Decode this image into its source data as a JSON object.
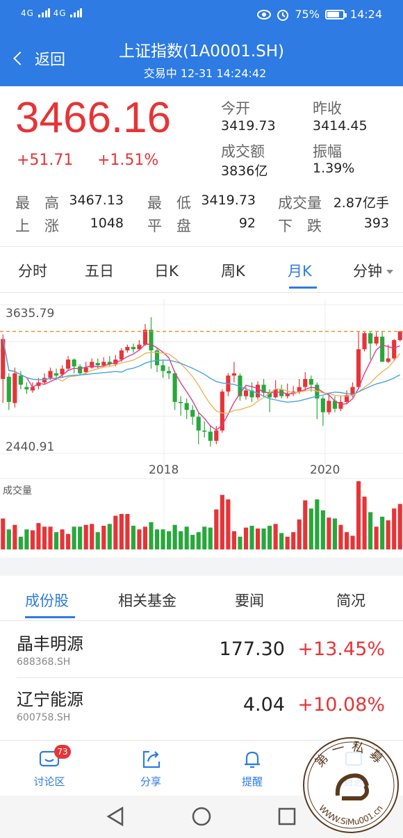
{
  "status": {
    "signal_1": "4G",
    "signal_2": "4G",
    "battery": "75%",
    "battery_level": 0.75,
    "time": "14:24"
  },
  "header": {
    "back_label": "返回",
    "title": "上证指数(1A0001.SH)",
    "subtitle": "交易中 12-31 14:24:42"
  },
  "quote": {
    "price": "3466.16",
    "change": "+51.71",
    "change_pct": "+1.51%",
    "open_label": "今开",
    "open": "3419.73",
    "prev_close_label": "昨收",
    "prev_close": "3414.45",
    "turnover_label": "成交额",
    "turnover": "3836亿",
    "amplitude_label": "振幅",
    "amplitude": "1.39%",
    "high_label": "最　高",
    "high": "3467.13",
    "low_label": "最　低",
    "low": "3419.73",
    "volume_label": "成交量",
    "volume": "2.87亿手",
    "up_label": "上　涨",
    "up": "1048",
    "flat_label": "平　盘",
    "flat": "92",
    "down_label": "下　跌",
    "down": "393"
  },
  "period_tabs": [
    "分时",
    "五日",
    "日K",
    "周K",
    "月K",
    "分钟"
  ],
  "active_period": "月K",
  "colors": {
    "brand": "#2d7be3",
    "up": "#e63437",
    "down": "#27a83b",
    "ma5": "#e03a8c",
    "ma10": "#f0b35a",
    "ma20": "#4aa3e0",
    "ref_line": "#f08a1c"
  },
  "chart_data": {
    "type": "candlestick",
    "price_high_label": "3635.79",
    "price_low_label": "2440.91",
    "ylim": [
      2400,
      3700
    ],
    "x_labels": [
      "2018",
      "2020"
    ],
    "volume_label": "成交量",
    "candles": [
      {
        "o": 3050,
        "c": 3400,
        "h": 3440,
        "l": 2840
      },
      {
        "o": 3070,
        "c": 2850,
        "h": 3100,
        "l": 2780
      },
      {
        "o": 2840,
        "c": 3100,
        "h": 3150,
        "l": 2800
      },
      {
        "o": 3080,
        "c": 3000,
        "h": 3120,
        "l": 2960
      },
      {
        "o": 2980,
        "c": 2960,
        "h": 3020,
        "l": 2920
      },
      {
        "o": 2950,
        "c": 2980,
        "h": 3020,
        "l": 2930
      },
      {
        "o": 2990,
        "c": 3020,
        "h": 3060,
        "l": 2960
      },
      {
        "o": 3020,
        "c": 3060,
        "h": 3100,
        "l": 3000
      },
      {
        "o": 3060,
        "c": 3120,
        "h": 3150,
        "l": 3040
      },
      {
        "o": 3100,
        "c": 3080,
        "h": 3140,
        "l": 3040
      },
      {
        "o": 3090,
        "c": 3140,
        "h": 3170,
        "l": 3060
      },
      {
        "o": 3140,
        "c": 3220,
        "h": 3250,
        "l": 3120
      },
      {
        "o": 3220,
        "c": 3160,
        "h": 3230,
        "l": 3100
      },
      {
        "o": 3160,
        "c": 3100,
        "h": 3180,
        "l": 3080
      },
      {
        "o": 3110,
        "c": 3150,
        "h": 3200,
        "l": 3090
      },
      {
        "o": 3150,
        "c": 3200,
        "h": 3230,
        "l": 3140
      },
      {
        "o": 3190,
        "c": 3170,
        "h": 3230,
        "l": 3140
      },
      {
        "o": 3170,
        "c": 3200,
        "h": 3240,
        "l": 3150
      },
      {
        "o": 3200,
        "c": 3180,
        "h": 3250,
        "l": 3160
      },
      {
        "o": 3180,
        "c": 3220,
        "h": 3260,
        "l": 3160
      },
      {
        "o": 3220,
        "c": 3300,
        "h": 3320,
        "l": 3200
      },
      {
        "o": 3300,
        "c": 3330,
        "h": 3350,
        "l": 3280
      },
      {
        "o": 3330,
        "c": 3310,
        "h": 3360,
        "l": 3280
      },
      {
        "o": 3310,
        "c": 3350,
        "h": 3390,
        "l": 3300
      },
      {
        "o": 3350,
        "c": 3480,
        "h": 3530,
        "l": 3340
      },
      {
        "o": 3480,
        "c": 3300,
        "h": 3590,
        "l": 3140
      },
      {
        "o": 3300,
        "c": 3170,
        "h": 3320,
        "l": 3110
      },
      {
        "o": 3170,
        "c": 3120,
        "h": 3210,
        "l": 3060
      },
      {
        "o": 3120,
        "c": 3100,
        "h": 3160,
        "l": 3050
      },
      {
        "o": 3100,
        "c": 2850,
        "h": 3120,
        "l": 2780
      },
      {
        "o": 2850,
        "c": 2840,
        "h": 2900,
        "l": 2730
      },
      {
        "o": 2840,
        "c": 2780,
        "h": 2880,
        "l": 2700
      },
      {
        "o": 2780,
        "c": 2720,
        "h": 2820,
        "l": 2650
      },
      {
        "o": 2720,
        "c": 2600,
        "h": 2760,
        "l": 2480
      },
      {
        "o": 2600,
        "c": 2590,
        "h": 2680,
        "l": 2540
      },
      {
        "o": 2590,
        "c": 2510,
        "h": 2650,
        "l": 2460
      },
      {
        "o": 2510,
        "c": 2600,
        "h": 2640,
        "l": 2480
      },
      {
        "o": 2600,
        "c": 2940,
        "h": 2960,
        "l": 2580
      },
      {
        "o": 2940,
        "c": 3080,
        "h": 3100,
        "l": 2900
      },
      {
        "o": 3080,
        "c": 3100,
        "h": 3200,
        "l": 3020
      },
      {
        "o": 3080,
        "c": 2900,
        "h": 3100,
        "l": 2860
      },
      {
        "o": 2900,
        "c": 2950,
        "h": 2980,
        "l": 2870
      },
      {
        "o": 2950,
        "c": 2890,
        "h": 3020,
        "l": 2850
      },
      {
        "o": 2890,
        "c": 3000,
        "h": 3030,
        "l": 2870
      },
      {
        "o": 3000,
        "c": 2930,
        "h": 3050,
        "l": 2900
      },
      {
        "o": 2930,
        "c": 2890,
        "h": 2960,
        "l": 2760
      },
      {
        "o": 2890,
        "c": 2960,
        "h": 3040,
        "l": 2880
      },
      {
        "o": 2960,
        "c": 2900,
        "h": 3000,
        "l": 2880
      },
      {
        "o": 2900,
        "c": 2920,
        "h": 3010,
        "l": 2880
      },
      {
        "o": 2920,
        "c": 2940,
        "h": 2990,
        "l": 2900
      },
      {
        "o": 2940,
        "c": 2980,
        "h": 3050,
        "l": 2920
      },
      {
        "o": 2980,
        "c": 3050,
        "h": 3110,
        "l": 2950
      },
      {
        "o": 3050,
        "c": 3000,
        "h": 3080,
        "l": 2940
      },
      {
        "o": 3000,
        "c": 2880,
        "h": 3020,
        "l": 2700
      },
      {
        "o": 2880,
        "c": 2760,
        "h": 2900,
        "l": 2640
      },
      {
        "o": 2760,
        "c": 2860,
        "h": 2920,
        "l": 2740
      },
      {
        "o": 2860,
        "c": 2790,
        "h": 2900,
        "l": 2760
      },
      {
        "o": 2790,
        "c": 2850,
        "h": 2900,
        "l": 2770
      },
      {
        "o": 2850,
        "c": 2910,
        "h": 2950,
        "l": 2830
      },
      {
        "o": 2910,
        "c": 2980,
        "h": 3020,
        "l": 2890
      },
      {
        "o": 2980,
        "c": 3310,
        "h": 3460,
        "l": 2960
      },
      {
        "o": 3310,
        "c": 3450,
        "h": 3460,
        "l": 3290
      },
      {
        "o": 3450,
        "c": 3360,
        "h": 3460,
        "l": 3220
      },
      {
        "o": 3360,
        "c": 3420,
        "h": 3460,
        "l": 3340
      },
      {
        "o": 3420,
        "c": 3200,
        "h": 3460,
        "l": 3200
      },
      {
        "o": 3200,
        "c": 3230,
        "h": 3350,
        "l": 3190
      },
      {
        "o": 3230,
        "c": 3390,
        "h": 3400,
        "l": 3210
      },
      {
        "o": 3390,
        "c": 3466,
        "h": 3467,
        "l": 3380
      }
    ],
    "volumes": [
      34,
      22,
      27,
      14,
      22,
      21,
      29,
      25,
      25,
      19,
      22,
      17,
      25,
      25,
      27,
      28,
      19,
      26,
      28,
      37,
      39,
      39,
      26,
      22,
      25,
      30,
      22,
      22,
      20,
      27,
      20,
      25,
      16,
      19,
      25,
      24,
      44,
      60,
      55,
      20,
      14,
      24,
      26,
      23,
      23,
      26,
      28,
      18,
      14,
      19,
      33,
      54,
      45,
      55,
      43,
      35,
      34,
      27,
      19,
      15,
      75,
      58,
      41,
      25,
      36,
      32,
      45,
      50
    ]
  },
  "sub_tabs": [
    "成份股",
    "相关基金",
    "要闻",
    "简况"
  ],
  "active_sub_tab": "成份股",
  "stocks": [
    {
      "name": "晶丰明源",
      "code": "688368.SH",
      "price": "177.30",
      "pct": "+13.45%"
    },
    {
      "name": "辽宁能源",
      "code": "600758.SH",
      "price": "4.04",
      "pct": "+10.08%"
    }
  ],
  "bottom_bar": {
    "discuss": {
      "label": "讨论区",
      "badge": "73"
    },
    "share": {
      "label": "分享"
    },
    "remind": {
      "label": "提醒"
    },
    "fourth": {
      "label": "自选"
    }
  },
  "watermark": {
    "text_top": "第一私募",
    "text_bottom": "WWW.SiMu001.cn",
    "icon": "seal-logo-icon"
  }
}
